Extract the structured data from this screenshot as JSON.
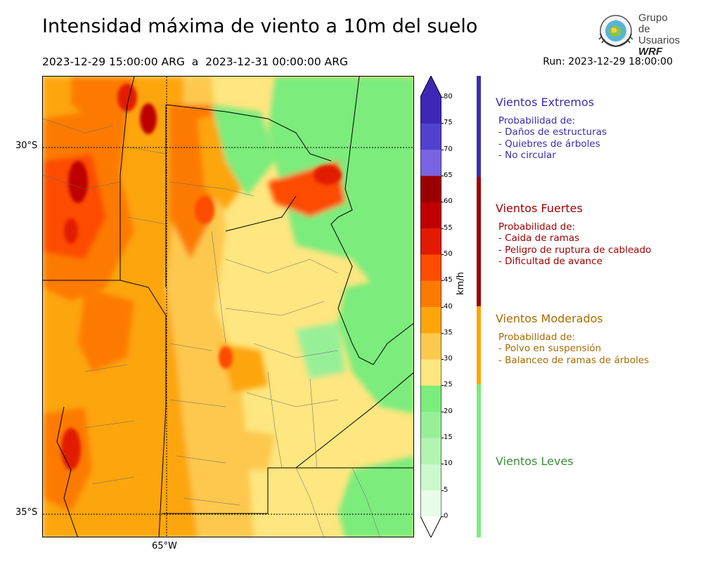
{
  "header": {
    "title": "Intensidad máxima de viento a 10m del suelo",
    "period": "2023-12-29 15:00:00 ARG  a  2023-12-31 00:00:00 ARG",
    "run": "Run: 2023-12-29 18:00:00"
  },
  "logo": {
    "line1": "Grupo de",
    "line2": "Usuarios",
    "line3": "WRF"
  },
  "map": {
    "lat_labels": [
      "30°S",
      "35°S"
    ],
    "lon_labels": [
      "65°W"
    ]
  },
  "colorbar": {
    "unit": "km/h",
    "ticks": [
      "0",
      "5",
      "10",
      "15",
      "20",
      "25",
      "30",
      "35",
      "40",
      "45",
      "50",
      "55",
      "60",
      "65",
      "70",
      "75",
      "80"
    ],
    "colors": [
      "#e8fce8",
      "#cdf8cd",
      "#b2f4b2",
      "#97f097",
      "#7cec7c",
      "#fee680",
      "#fdc84e",
      "#fda50a",
      "#fd7a00",
      "#fd4c00",
      "#e21a00",
      "#be0000",
      "#9b0000",
      "#7a63e0",
      "#5440cf",
      "#3e27b6"
    ]
  },
  "categories": [
    {
      "title": "Vientos Extremos",
      "color": "#3b2db0",
      "heading": "Probabilidad de:",
      "items": [
        "- Daños de estructuras",
        "- Quiebres de árboles",
        "- No circular"
      ]
    },
    {
      "title": "Vientos Fuertes",
      "color": "#a00000",
      "heading": "Probabilidad de:",
      "items": [
        "- Caida de ramas",
        "- Peligro de ruptura de cableado",
        "- Dificultad de avance"
      ]
    },
    {
      "title": "Vientos Moderados",
      "color": "#a86a00",
      "heading": "Probabilidad de:",
      "items": [
        "- Polvo en suspensión",
        "- Balanceo de ramas de árboles"
      ]
    },
    {
      "title": "Vientos Leves",
      "color": "#3a8f3a",
      "heading": "",
      "items": []
    }
  ]
}
